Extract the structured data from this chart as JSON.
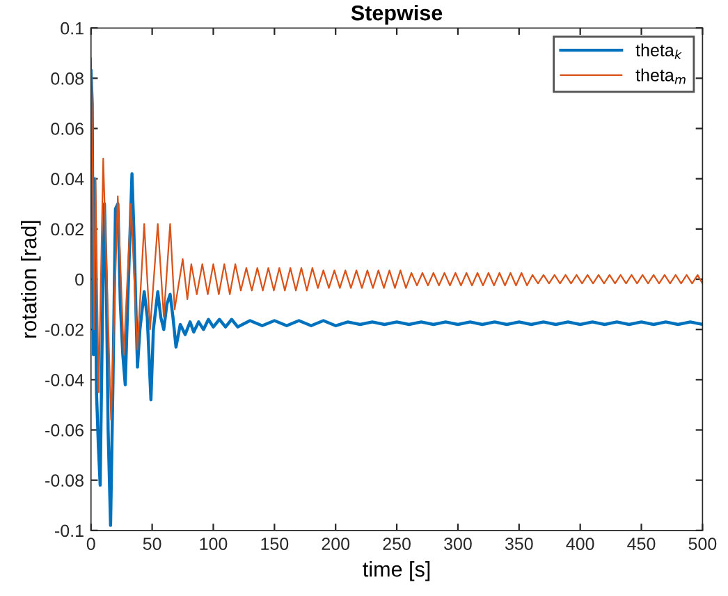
{
  "chart_data": {
    "type": "line",
    "title": "Stepwise",
    "xlabel": "time [s]",
    "ylabel": "rotation [rad]",
    "xlim": [
      0,
      500
    ],
    "xticks": [
      0,
      50,
      100,
      150,
      200,
      250,
      300,
      350,
      400,
      450,
      500
    ],
    "ylim": [
      -0.1,
      0.1
    ],
    "yticks": [
      -0.1,
      -0.08,
      -0.06,
      -0.04,
      -0.02,
      0,
      0.02,
      0.04,
      0.06,
      0.08,
      0.1
    ],
    "grid": false,
    "legend": "top right",
    "marker": "none",
    "line_style": "solid",
    "series": [
      {
        "name": "theta$_{k}$",
        "color": "#0072bd",
        "x": [
          0,
          1,
          2,
          3,
          4.5,
          6,
          7.5,
          9.5,
          11,
          12.5,
          14,
          16,
          18,
          20,
          22,
          24,
          26,
          28,
          30,
          33.5,
          35,
          38,
          40,
          43.5,
          46,
          49,
          51,
          54.6,
          57,
          59.5,
          62,
          64.7,
          67,
          69.5,
          73,
          77,
          81,
          84,
          88,
          92,
          96,
          100,
          105,
          110,
          115,
          120,
          130,
          140,
          150,
          160,
          170,
          180,
          190,
          200,
          210,
          220,
          230,
          240,
          250,
          260,
          270,
          280,
          290,
          300,
          310,
          320,
          330,
          340,
          350,
          360,
          370,
          380,
          390,
          400,
          410,
          420,
          430,
          440,
          450,
          460,
          470,
          480,
          490,
          500
        ],
        "values": [
          0.083,
          0.07,
          -0.03,
          0.04,
          -0.045,
          -0.066,
          -0.082,
          -0.01,
          0.03,
          0.0,
          -0.06,
          -0.098,
          -0.04,
          0.028,
          0.03,
          -0.01,
          -0.03,
          -0.042,
          -0.01,
          0.042,
          0.02,
          -0.035,
          -0.02,
          -0.005,
          -0.015,
          -0.048,
          -0.02,
          -0.005,
          -0.015,
          -0.02,
          -0.01,
          -0.006,
          -0.015,
          -0.027,
          -0.018,
          -0.022,
          -0.017,
          -0.021,
          -0.017,
          -0.02,
          -0.016,
          -0.019,
          -0.016,
          -0.019,
          -0.016,
          -0.019,
          -0.0165,
          -0.0185,
          -0.0165,
          -0.0185,
          -0.0165,
          -0.0185,
          -0.0165,
          -0.0185,
          -0.017,
          -0.018,
          -0.017,
          -0.018,
          -0.017,
          -0.018,
          -0.017,
          -0.018,
          -0.017,
          -0.018,
          -0.017,
          -0.018,
          -0.017,
          -0.018,
          -0.017,
          -0.018,
          -0.017,
          -0.018,
          -0.017,
          -0.018,
          -0.017,
          -0.018,
          -0.017,
          -0.018,
          -0.017,
          -0.018,
          -0.017,
          -0.018,
          -0.017,
          -0.018
        ]
      },
      {
        "name": "theta$_{m}$",
        "color": "#d95319",
        "x": [
          0,
          1.5,
          2.5,
          3.7,
          6.3,
          10,
          13,
          16.4,
          21.9,
          26.8,
          32.7,
          37.9,
          43.5,
          48.3,
          54.6,
          59.5,
          64.7,
          68.4,
          75,
          78.8,
          82,
          86.5,
          91,
          95.5,
          100,
          104.5,
          109,
          113.5,
          118,
          122.5,
          127,
          131.5,
          136,
          140.5,
          145,
          149.5,
          154,
          158.5,
          163,
          167.5,
          172,
          176.5,
          181,
          185.5,
          190,
          194.5,
          199,
          203.5,
          208,
          212.5,
          217,
          221.5,
          226,
          230.5,
          235,
          239.5,
          244,
          248.5,
          253,
          257.5,
          262,
          266.5,
          271,
          275.5,
          280,
          284.5,
          289,
          293.5,
          298,
          302.5,
          307,
          311.5,
          316,
          320.5,
          325,
          329.5,
          334,
          338.5,
          343,
          347.5,
          352,
          356.5,
          361,
          365.5,
          370,
          374.5,
          379,
          383.5,
          388,
          392.5,
          397,
          401.5,
          406,
          410.5,
          415,
          419.5,
          424,
          428.5,
          433,
          437.5,
          442,
          446.5,
          451,
          455.5,
          460,
          464.5,
          469,
          473.5,
          478,
          482.5,
          487,
          491.5,
          496,
          500
        ],
        "values": [
          0.088,
          0.04,
          -0.02,
          0.04,
          -0.045,
          0.048,
          0.0,
          -0.056,
          0.033,
          -0.03,
          0.03,
          -0.028,
          0.022,
          -0.02,
          0.022,
          -0.015,
          0.022,
          -0.012,
          0.008,
          -0.008,
          0.006,
          -0.006,
          0.006,
          -0.006,
          0.006,
          -0.006,
          0.006,
          -0.006,
          0.006,
          -0.0045,
          0.0045,
          -0.0045,
          0.0045,
          -0.0045,
          0.0045,
          -0.0045,
          0.0045,
          -0.0045,
          0.0045,
          -0.0045,
          0.0045,
          -0.0045,
          0.0045,
          -0.0035,
          0.0035,
          -0.0035,
          0.0035,
          -0.0035,
          0.0035,
          -0.0035,
          0.0035,
          -0.0035,
          0.0035,
          -0.0035,
          0.0035,
          -0.0035,
          0.0035,
          -0.0035,
          0.0035,
          -0.0035,
          0.0025,
          -0.0025,
          0.0025,
          -0.0025,
          0.0025,
          -0.0025,
          0.0025,
          -0.0025,
          0.0025,
          -0.0025,
          0.0025,
          -0.0025,
          0.0025,
          -0.0025,
          0.0025,
          -0.0025,
          0.0025,
          -0.0025,
          0.0025,
          -0.0025,
          0.0025,
          -0.0025,
          0.0017,
          -0.0017,
          0.0017,
          -0.0017,
          0.0017,
          -0.0017,
          0.0017,
          -0.0017,
          0.0017,
          -0.0017,
          0.0017,
          -0.0017,
          0.0017,
          -0.0017,
          0.0017,
          -0.0017,
          0.0017,
          -0.0017,
          0.0017,
          -0.0017,
          0.0017,
          -0.0017,
          0.0017,
          -0.0017,
          0.0017,
          -0.0017,
          0.0017,
          -0.0017,
          0.0017,
          -0.0017,
          0.0017,
          -0.0017
        ]
      }
    ]
  }
}
